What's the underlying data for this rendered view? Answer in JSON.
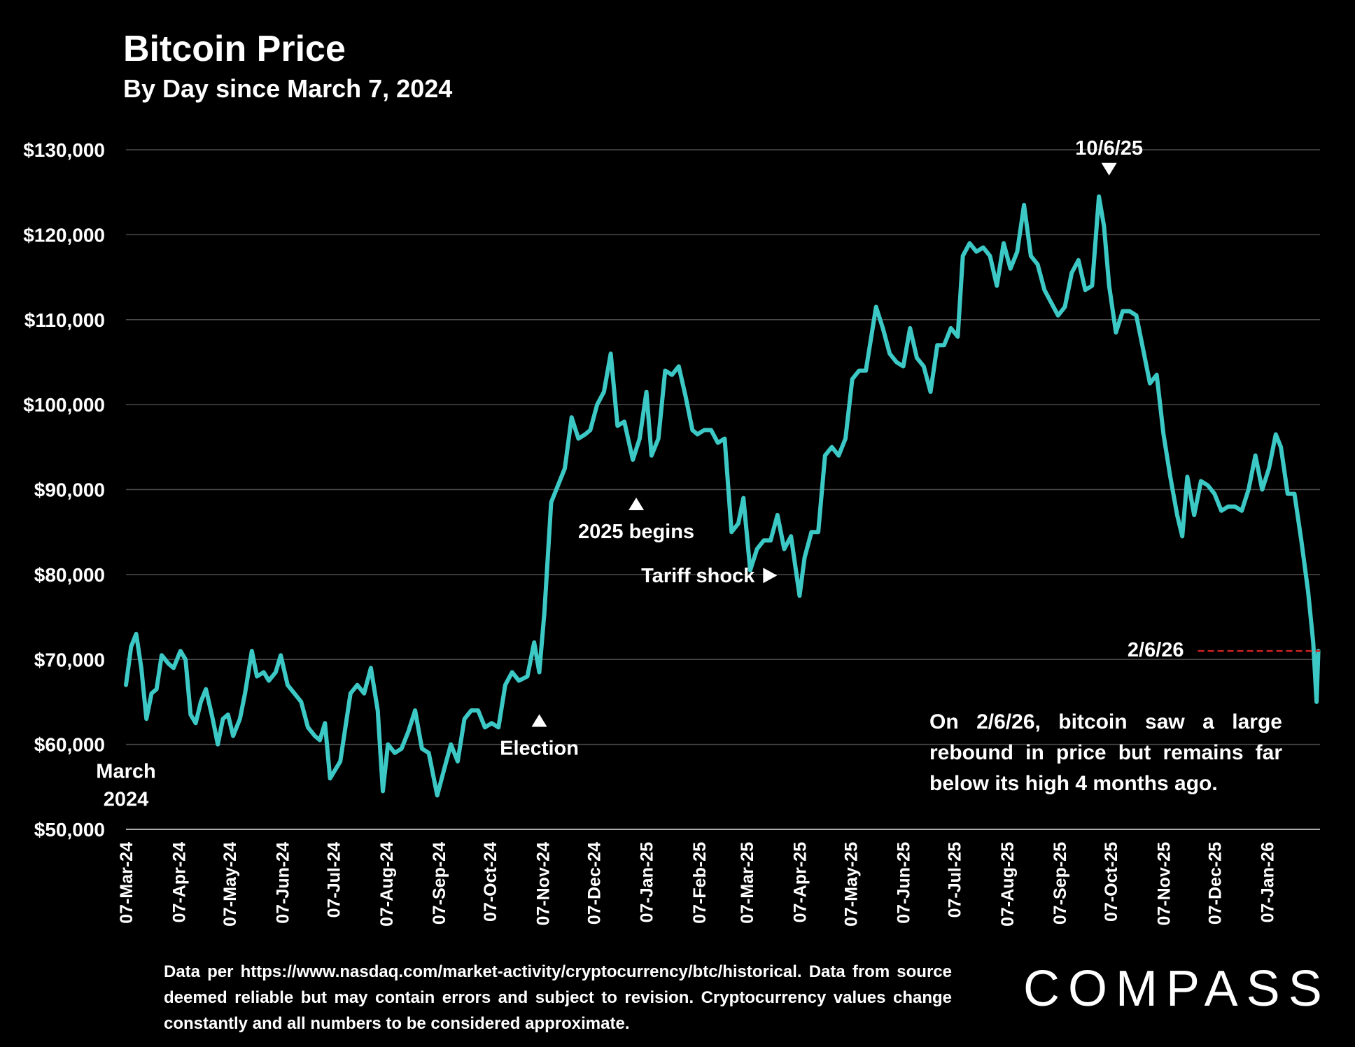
{
  "chart_data": {
    "type": "line",
    "title": "Bitcoin Price",
    "subtitle": "By Day since March 7, 2024",
    "xlabel": "",
    "ylabel": "",
    "ylim": [
      50000,
      130000
    ],
    "xlim": [
      "2024-03-07",
      "2026-02-07"
    ],
    "yticks": [
      50000,
      60000,
      70000,
      80000,
      90000,
      100000,
      110000,
      120000,
      130000
    ],
    "ytick_labels": [
      "$50,000",
      "$60,000",
      "$70,000",
      "$80,000",
      "$90,000",
      "$100,000",
      "$110,000",
      "$120,000",
      "$130,000"
    ],
    "xticks": [
      "2024-03-07",
      "2024-04-07",
      "2024-05-07",
      "2024-06-07",
      "2024-07-07",
      "2024-08-07",
      "2024-09-07",
      "2024-10-07",
      "2024-11-07",
      "2024-12-07",
      "2025-01-07",
      "2025-02-07",
      "2025-03-07",
      "2025-04-07",
      "2025-05-07",
      "2025-06-07",
      "2025-07-07",
      "2025-08-07",
      "2025-09-07",
      "2025-10-07",
      "2025-11-07",
      "2025-12-07",
      "2026-01-07"
    ],
    "xtick_labels": [
      "07-Mar-24",
      "07-Apr-24",
      "07-May-24",
      "07-Jun-24",
      "07-Jul-24",
      "07-Aug-24",
      "07-Sep-24",
      "07-Oct-24",
      "07-Nov-24",
      "07-Dec-24",
      "07-Jan-25",
      "07-Feb-25",
      "07-Mar-25",
      "07-Apr-25",
      "07-May-25",
      "07-Jun-25",
      "07-Jul-25",
      "07-Aug-25",
      "07-Sep-25",
      "07-Oct-25",
      "07-Nov-25",
      "07-Dec-25",
      "07-Jan-26"
    ],
    "grid": true,
    "line_color": "#3cc9c6",
    "reference_line_color": "#cc2222",
    "series": [
      {
        "x": [
          "2024-03-07",
          "2024-03-10",
          "2024-03-13",
          "2024-03-16",
          "2024-03-19",
          "2024-03-22",
          "2024-03-25",
          "2024-03-28",
          "2024-04-01",
          "2024-04-04",
          "2024-04-08",
          "2024-04-11",
          "2024-04-14",
          "2024-04-17",
          "2024-04-20",
          "2024-04-23",
          "2024-04-27",
          "2024-04-30",
          "2024-05-03",
          "2024-05-06",
          "2024-05-09",
          "2024-05-13",
          "2024-05-16",
          "2024-05-20",
          "2024-05-23",
          "2024-05-27",
          "2024-05-30",
          "2024-06-03",
          "2024-06-06",
          "2024-06-10",
          "2024-06-14",
          "2024-06-18",
          "2024-06-22",
          "2024-06-26",
          "2024-06-29",
          "2024-07-02",
          "2024-07-05",
          "2024-07-08",
          "2024-07-11",
          "2024-07-14",
          "2024-07-17",
          "2024-07-21",
          "2024-07-25",
          "2024-07-29",
          "2024-08-02",
          "2024-08-05",
          "2024-08-08",
          "2024-08-12",
          "2024-08-16",
          "2024-08-20",
          "2024-08-24",
          "2024-08-28",
          "2024-09-01",
          "2024-09-06",
          "2024-09-10",
          "2024-09-14",
          "2024-09-18",
          "2024-09-22",
          "2024-09-26",
          "2024-09-30",
          "2024-10-04",
          "2024-10-08",
          "2024-10-12",
          "2024-10-16",
          "2024-10-20",
          "2024-10-24",
          "2024-10-29",
          "2024-11-02",
          "2024-11-05",
          "2024-11-08",
          "2024-11-12",
          "2024-11-16",
          "2024-11-20",
          "2024-11-24",
          "2024-11-28",
          "2024-12-02",
          "2024-12-05",
          "2024-12-09",
          "2024-12-13",
          "2024-12-17",
          "2024-12-21",
          "2024-12-25",
          "2024-12-30",
          "2025-01-03",
          "2025-01-07",
          "2025-01-10",
          "2025-01-14",
          "2025-01-18",
          "2025-01-22",
          "2025-01-26",
          "2025-01-30",
          "2025-02-03",
          "2025-02-06",
          "2025-02-10",
          "2025-02-14",
          "2025-02-18",
          "2025-02-22",
          "2025-02-26",
          "2025-03-02",
          "2025-03-05",
          "2025-03-09",
          "2025-03-13",
          "2025-03-17",
          "2025-03-21",
          "2025-03-25",
          "2025-03-29",
          "2025-04-02",
          "2025-04-07",
          "2025-04-10",
          "2025-04-14",
          "2025-04-18",
          "2025-04-22",
          "2025-04-26",
          "2025-04-30",
          "2025-05-04",
          "2025-05-08",
          "2025-05-12",
          "2025-05-16",
          "2025-05-22",
          "2025-05-26",
          "2025-05-30",
          "2025-06-03",
          "2025-06-07",
          "2025-06-11",
          "2025-06-15",
          "2025-06-19",
          "2025-06-23",
          "2025-06-27",
          "2025-07-01",
          "2025-07-05",
          "2025-07-09",
          "2025-07-12",
          "2025-07-16",
          "2025-07-20",
          "2025-07-24",
          "2025-07-28",
          "2025-08-01",
          "2025-08-05",
          "2025-08-09",
          "2025-08-13",
          "2025-08-17",
          "2025-08-21",
          "2025-08-25",
          "2025-08-29",
          "2025-09-02",
          "2025-09-06",
          "2025-09-10",
          "2025-09-14",
          "2025-09-18",
          "2025-09-22",
          "2025-09-26",
          "2025-09-30",
          "2025-10-03",
          "2025-10-06",
          "2025-10-10",
          "2025-10-14",
          "2025-10-18",
          "2025-10-22",
          "2025-10-26",
          "2025-10-30",
          "2025-11-03",
          "2025-11-07",
          "2025-11-11",
          "2025-11-15",
          "2025-11-18",
          "2025-11-21",
          "2025-11-25",
          "2025-11-29",
          "2025-12-03",
          "2025-12-07",
          "2025-12-11",
          "2025-12-15",
          "2025-12-19",
          "2025-12-23",
          "2025-12-27",
          "2025-12-31",
          "2026-01-04",
          "2026-01-08",
          "2026-01-12",
          "2026-01-15",
          "2026-01-19",
          "2026-01-23",
          "2026-01-27",
          "2026-01-31",
          "2026-02-03",
          "2026-02-05",
          "2026-02-06"
        ],
        "y": [
          67000,
          71500,
          73000,
          69000,
          63000,
          66000,
          66500,
          70500,
          69500,
          69000,
          71000,
          70000,
          63500,
          62500,
          65000,
          66500,
          63000,
          60000,
          63000,
          63500,
          61000,
          63000,
          66000,
          71000,
          68000,
          68500,
          67500,
          68500,
          70500,
          67000,
          66000,
          65000,
          62000,
          61000,
          60500,
          62500,
          56000,
          57000,
          58000,
          62000,
          66000,
          67000,
          66000,
          69000,
          64000,
          54500,
          60000,
          59000,
          59500,
          61500,
          64000,
          59500,
          59000,
          54000,
          57000,
          60000,
          58000,
          63000,
          64000,
          64000,
          62000,
          62500,
          62000,
          67000,
          68500,
          67500,
          68000,
          72000,
          68500,
          75500,
          88500,
          90500,
          92500,
          98500,
          96000,
          96500,
          97000,
          100000,
          101500,
          106000,
          97500,
          98000,
          93500,
          96000,
          101500,
          94000,
          96000,
          104000,
          103500,
          104500,
          101000,
          97000,
          96500,
          97000,
          97000,
          95500,
          96000,
          85000,
          86000,
          89000,
          80500,
          83000,
          84000,
          84000,
          87000,
          83000,
          84500,
          77500,
          82000,
          85000,
          85000,
          94000,
          95000,
          94000,
          96000,
          103000,
          104000,
          104000,
          111500,
          109000,
          106000,
          105000,
          104500,
          109000,
          105500,
          104500,
          101500,
          107000,
          107000,
          109000,
          108000,
          117500,
          119000,
          118000,
          118500,
          117500,
          114000,
          119000,
          116000,
          118000,
          123500,
          117500,
          116500,
          113500,
          112000,
          110500,
          111500,
          115500,
          117000,
          113500,
          114000,
          124500,
          121000,
          114000,
          108500,
          111000,
          111000,
          110500,
          106500,
          102500,
          103500,
          96500,
          91500,
          87000,
          84500,
          91500,
          87000,
          91000,
          90500,
          89500,
          87500,
          88000,
          88000,
          87500,
          90000,
          94000,
          90000,
          92500,
          96500,
          95000,
          89500,
          89500,
          84000,
          78000,
          72000,
          65000,
          71000
        ]
      }
    ],
    "annotations": [
      {
        "text": "March\n2024",
        "x": "2024-03-07",
        "y": 61000
      },
      {
        "text": "Election",
        "x": "2024-11-05",
        "y": 68500,
        "arrow": "up"
      },
      {
        "text": "2025 begins",
        "x": "2025-01-01",
        "y": 94000,
        "arrow": "up"
      },
      {
        "text": "Tariff shock",
        "x": "2025-04-07",
        "y": 77500,
        "arrow": "right"
      },
      {
        "text": "10/6/25",
        "x": "2025-10-06",
        "y": 124500,
        "arrow": "down"
      },
      {
        "text": "2/6/26",
        "x": "2026-02-06",
        "y": 71000,
        "reference_line": true
      }
    ]
  },
  "note": "On 2/6/26, bitcoin saw a large rebound in price but remains far below its high 4 months ago.",
  "footnote": "Data per https://www.nasdaq.com/market-activity/cryptocurrency/btc/historical. Data from source deemed reliable but may contain errors and subject to revision. Cryptocurrency values change constantly and all numbers to be considered approximate.",
  "logo": "COMPASS"
}
